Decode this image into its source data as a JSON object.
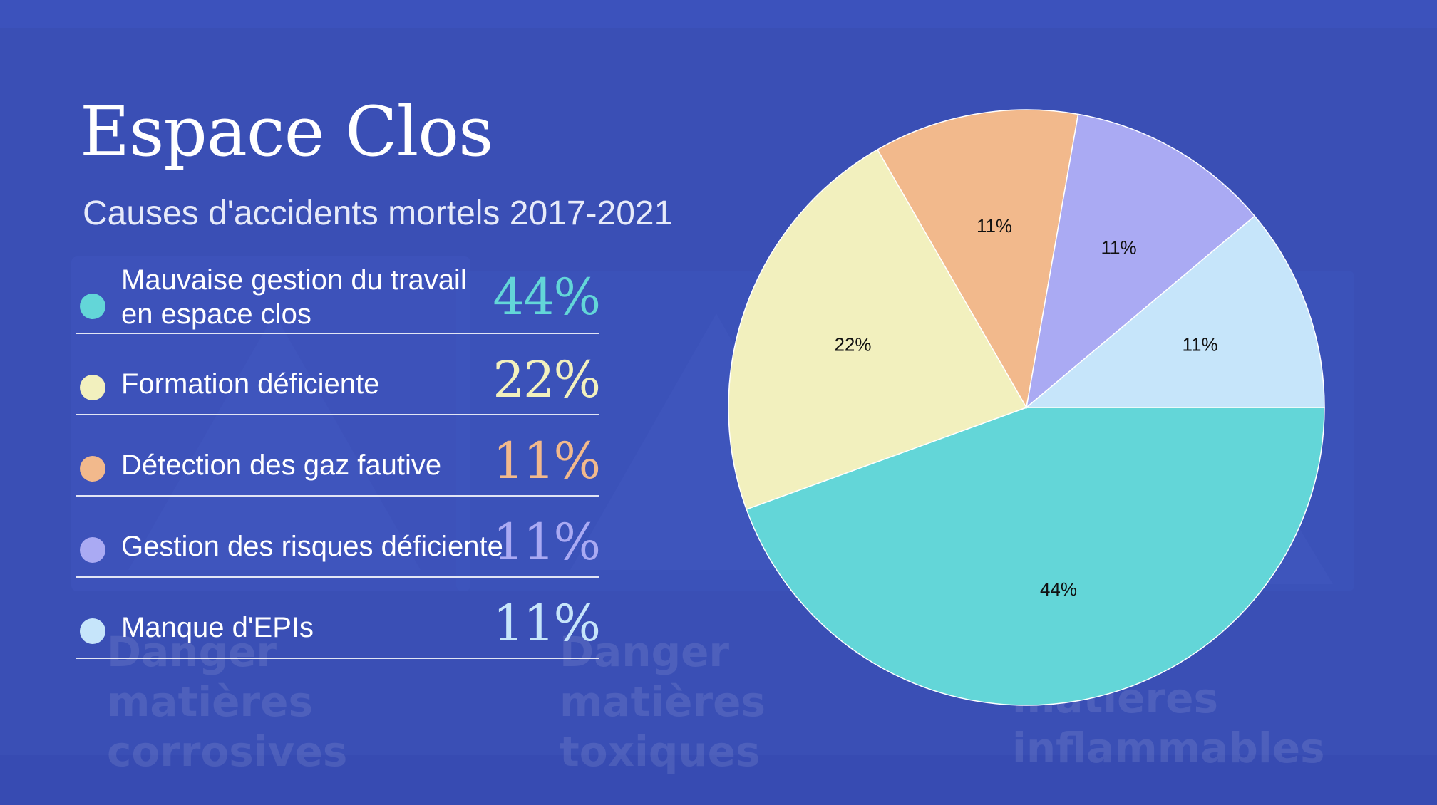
{
  "title": "Espace Clos",
  "subtitle": "Causes d'accidents mortels 2017-2021",
  "background_signs": [
    "Danger\nmatières\ncorrosives",
    "Danger\nmatières\ntoxiques",
    "matières\ninflammables"
  ],
  "legend": [
    {
      "label": "Mauvaise gestion du travail\nen espace clos",
      "value": "44%",
      "color": "#63d6d8"
    },
    {
      "label": "Formation déficiente",
      "value": "22%",
      "color": "#f2f0be"
    },
    {
      "label": "Détection des gaz fautive",
      "value": "11%",
      "color": "#f2b98c"
    },
    {
      "label": "Gestion des risques déficiente",
      "value": "11%",
      "color": "#aaaaf3"
    },
    {
      "label": "Manque d'EPIs",
      "value": "11%",
      "color": "#c6e5fa"
    }
  ],
  "chart_data": {
    "type": "pie",
    "categories": [
      "Mauvaise gestion du travail en espace clos",
      "Formation déficiente",
      "Détection des gaz fautive",
      "Gestion des risques déficiente",
      "Manque d'EPIs"
    ],
    "values": [
      44,
      22,
      11,
      11,
      11
    ],
    "labels": [
      "44%",
      "22%",
      "11%",
      "11%",
      "11%"
    ],
    "colors": [
      "#63d6d8",
      "#f2f0be",
      "#f2b98c",
      "#aaaaf3",
      "#c6e5fa"
    ],
    "title": "Espace Clos",
    "subtitle": "Causes d'accidents mortels 2017-2021",
    "legend": "left"
  }
}
